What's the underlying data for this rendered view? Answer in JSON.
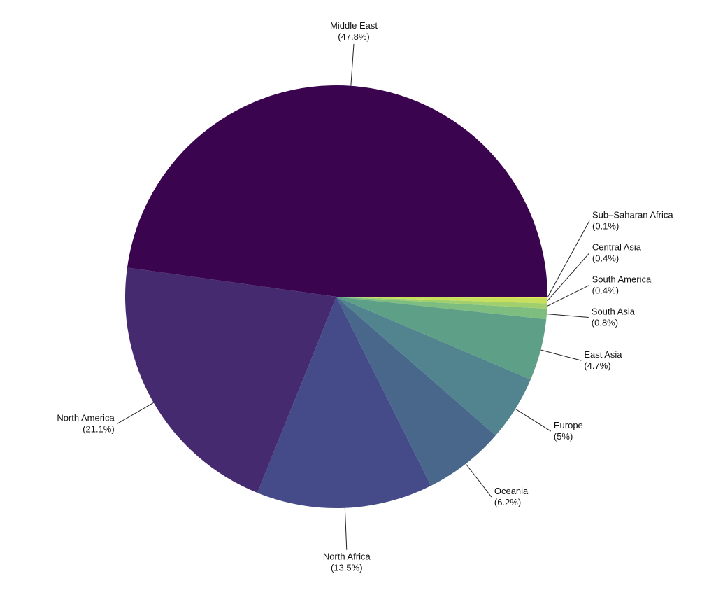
{
  "chart_data": {
    "type": "pie",
    "categories": [
      "Middle East",
      "North America",
      "North Africa",
      "Oceania",
      "Europe",
      "East Asia",
      "South Asia",
      "South America",
      "Central Asia",
      "Sub–Saharan Africa"
    ],
    "values": [
      47.8,
      21.1,
      13.5,
      6.2,
      5,
      4.7,
      0.8,
      0.4,
      0.4,
      0.1
    ],
    "value_labels": [
      "(47.8%)",
      "(21.1%)",
      "(13.5%)",
      "(6.2%)",
      "(5%)",
      "(4.7%)",
      "(0.8%)",
      "(0.4%)",
      "(0.4%)",
      "(0.1%)"
    ],
    "colors": [
      "#3b044f",
      "#452a6f",
      "#454a88",
      "#48678b",
      "#51848f",
      "#5e9f88",
      "#7dbd80",
      "#a2cf6e",
      "#c8df5c",
      "#e8e84d"
    ]
  }
}
